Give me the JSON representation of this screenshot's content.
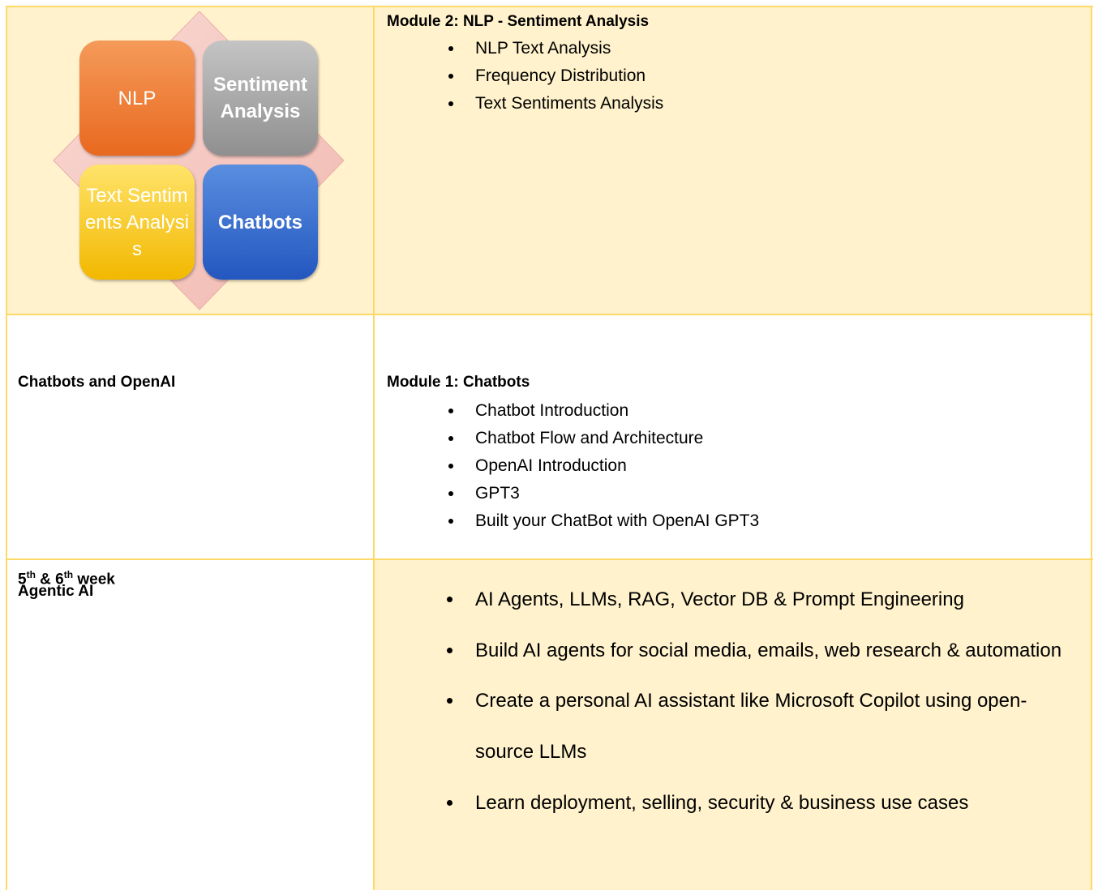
{
  "rows": [
    {
      "diagram": [
        "NLP",
        "Sentiment Analysis",
        "Text Sentiments Analysis",
        "Chatbots"
      ],
      "heading": "Module 2: NLP - Sentiment Analysis",
      "items": [
        "NLP Text Analysis",
        "Frequency Distribution",
        "Text Sentiments Analysis"
      ]
    },
    {
      "title": "Chatbots and OpenAI",
      "heading": "Module 1: Chatbots",
      "items": [
        "Chatbot Introduction",
        "Chatbot Flow and Architecture",
        "OpenAI Introduction",
        "GPT3",
        "Built your ChatBot with OpenAI GPT3"
      ]
    },
    {
      "week": [
        "5",
        "th",
        " & 6",
        "th",
        " week"
      ],
      "title": "Agentic AI",
      "items": [
        "AI Agents, LLMs, RAG, Vector DB & Prompt Engineering",
        "Build AI agents for social media, emails, web research & automation",
        "Create a personal AI assistant like Microsoft Copilot using open-source LLMs",
        "Learn deployment, selling, security & business use cases"
      ]
    }
  ]
}
